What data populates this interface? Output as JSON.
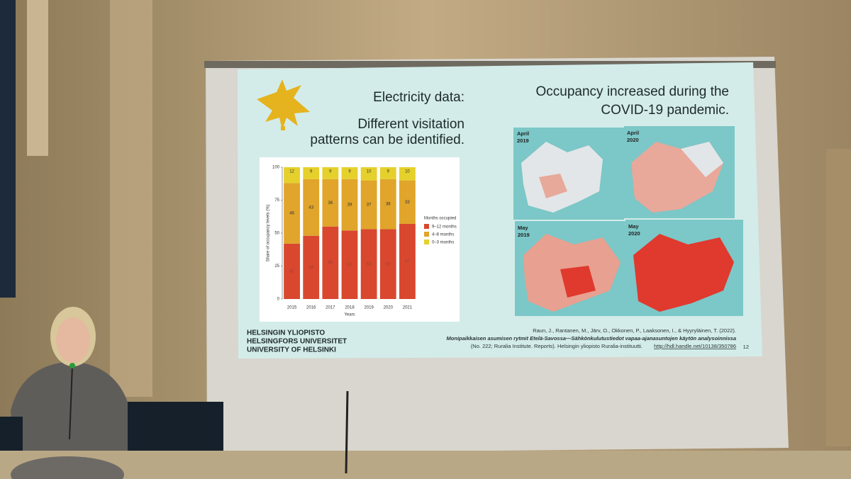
{
  "slide": {
    "heading": "Electricity data:",
    "subheading_lines": [
      "Different visitation",
      "patterns can be identified."
    ],
    "right_heading_lines": [
      "Occupancy increased during the",
      "COVID-19 pandemic."
    ],
    "university": [
      "HELSINGIN YLIOPISTO",
      "HELSINGFORS UNIVERSITET",
      "UNIVERSITY OF HELSINKI"
    ],
    "citation": {
      "authors": "Raun, J., Rantanen, M., Järv, O., Okkonen, P., Laaksonen, I., & Hyyryläinen, T. (2022).",
      "title": "Monipaikkaisen asumisen rytmit Etelä-Savossa—Sähkönkulutustiedot vapaa-ajanasuntojen käytön analysoinnissa",
      "publisher": "(No. 222; Ruralia Institute. Reports). Helsingin yliopisto Ruralia-instituutti.",
      "link": "http://hdl.handle.net/10138/350786"
    },
    "page_number": "12"
  },
  "maps": [
    [
      "April",
      "2019"
    ],
    [
      "April",
      "2020"
    ],
    [
      "May",
      "2019"
    ],
    [
      "May",
      "2020"
    ]
  ],
  "chart_data": {
    "type": "stacked_bar",
    "x_label": "Years",
    "y_label": "Share of occupancy levels (%)",
    "legend_title": "Months occupied",
    "categories": [
      "2015",
      "2016",
      "2017",
      "2018",
      "2019",
      "2020",
      "2021"
    ],
    "series": [
      {
        "name": "9–12 months",
        "color": "#d9472f",
        "values": [
          42,
          48,
          55,
          52,
          53,
          53,
          57
        ]
      },
      {
        "name": "4–8 months",
        "color": "#e0a52a",
        "values": [
          46,
          43,
          36,
          39,
          37,
          38,
          33
        ]
      },
      {
        "name": "0–3 months",
        "color": "#e6d02c",
        "values": [
          12,
          9,
          9,
          9,
          10,
          9,
          10
        ]
      }
    ],
    "ylim": [
      0,
      100
    ],
    "yticks": [
      0,
      25,
      50,
      75,
      100
    ]
  }
}
